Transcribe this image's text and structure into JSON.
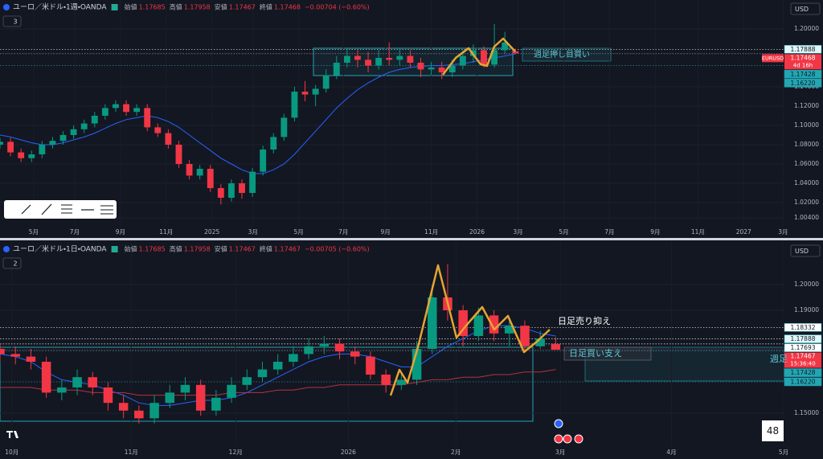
{
  "chart_data": [
    {
      "type": "candlestick",
      "title": "ユーロ／米ドル・1週・OANDA",
      "pane_badge": "3",
      "currency": "USD",
      "stats": [
        {
          "label": "始値",
          "value": 1.17685
        },
        {
          "label": "高値",
          "value": 1.17958
        },
        {
          "label": "安値",
          "value": 1.17467
        },
        {
          "label": "終値",
          "value": 1.17468
        }
      ],
      "change": "−0.00704 (−0.60%)",
      "up_color": "#089981",
      "down_color": "#f23645",
      "x": [
        0,
        2,
        4,
        6,
        8,
        10,
        12,
        14,
        16,
        18,
        20,
        22,
        24,
        26,
        28,
        30,
        32,
        34,
        36,
        38,
        40,
        42,
        44,
        46,
        48,
        50,
        52,
        54,
        56,
        58,
        60,
        62,
        64,
        66,
        68,
        70,
        72,
        74,
        76,
        78,
        80,
        82,
        84,
        86,
        88,
        90,
        92,
        94,
        96,
        98
      ],
      "open": [
        1.08,
        1.083,
        1.072,
        1.066,
        1.07,
        1.08,
        1.084,
        1.09,
        1.096,
        1.102,
        1.11,
        1.118,
        1.122,
        1.114,
        1.118,
        1.098,
        1.092,
        1.08,
        1.06,
        1.048,
        1.055,
        1.035,
        1.025,
        1.04,
        1.03,
        1.052,
        1.075,
        1.088,
        1.108,
        1.135,
        1.132,
        1.138,
        1.152,
        1.165,
        1.172,
        1.168,
        1.162,
        1.17,
        1.168,
        1.172,
        1.165,
        1.158,
        1.16,
        1.155,
        1.162,
        1.172,
        1.178,
        1.163,
        1.178,
        1.17685
      ],
      "high": [
        1.087,
        1.087,
        1.076,
        1.074,
        1.084,
        1.088,
        1.094,
        1.1,
        1.106,
        1.114,
        1.122,
        1.126,
        1.126,
        1.122,
        1.122,
        1.102,
        1.096,
        1.084,
        1.064,
        1.059,
        1.059,
        1.039,
        1.044,
        1.044,
        1.056,
        1.079,
        1.092,
        1.112,
        1.14,
        1.146,
        1.142,
        1.158,
        1.172,
        1.18,
        1.178,
        1.176,
        1.178,
        1.186,
        1.18,
        1.178,
        1.17,
        1.166,
        1.166,
        1.168,
        1.178,
        1.184,
        1.182,
        1.205,
        1.197,
        1.17958
      ],
      "low": [
        1.076,
        1.068,
        1.062,
        1.062,
        1.066,
        1.076,
        1.08,
        1.086,
        1.092,
        1.098,
        1.106,
        1.114,
        1.11,
        1.11,
        1.094,
        1.088,
        1.076,
        1.056,
        1.044,
        1.044,
        1.031,
        1.018,
        1.021,
        1.024,
        1.026,
        1.048,
        1.071,
        1.084,
        1.104,
        1.125,
        1.12,
        1.134,
        1.148,
        1.16,
        1.16,
        1.155,
        1.158,
        1.162,
        1.162,
        1.16,
        1.15,
        1.152,
        1.148,
        1.15,
        1.158,
        1.165,
        1.16,
        1.16,
        1.174,
        1.17467
      ],
      "close": [
        1.083,
        1.072,
        1.066,
        1.07,
        1.08,
        1.084,
        1.09,
        1.096,
        1.102,
        1.11,
        1.118,
        1.122,
        1.114,
        1.118,
        1.098,
        1.092,
        1.08,
        1.06,
        1.048,
        1.055,
        1.035,
        1.025,
        1.04,
        1.03,
        1.052,
        1.075,
        1.088,
        1.108,
        1.135,
        1.132,
        1.138,
        1.152,
        1.165,
        1.172,
        1.168,
        1.162,
        1.17,
        1.168,
        1.172,
        1.165,
        1.158,
        1.16,
        1.155,
        1.162,
        1.172,
        1.178,
        1.163,
        1.178,
        1.186,
        1.17468
      ],
      "series": [
        {
          "color": "#2962ff",
          "values": [
            1.09,
            1.088,
            1.085,
            1.082,
            1.08,
            1.08,
            1.082,
            1.085,
            1.088,
            1.092,
            1.097,
            1.102,
            1.106,
            1.108,
            1.11,
            1.108,
            1.104,
            1.098,
            1.09,
            1.082,
            1.074,
            1.066,
            1.06,
            1.054,
            1.05,
            1.05,
            1.054,
            1.06,
            1.07,
            1.082,
            1.094,
            1.106,
            1.118,
            1.128,
            1.137,
            1.144,
            1.15,
            1.155,
            1.158,
            1.16,
            1.161,
            1.162,
            1.162,
            1.163,
            1.164,
            1.166,
            1.168,
            1.17,
            1.172,
            1.174
          ]
        }
      ],
      "xlim": [
        0,
        149
      ],
      "xticks": [
        {
          "value": 6.4,
          "label": "5月"
        },
        {
          "value": 14.2,
          "label": "7月"
        },
        {
          "value": 22.9,
          "label": "9月"
        },
        {
          "value": 31.6,
          "label": "11月"
        },
        {
          "value": 40.3,
          "label": "2025"
        },
        {
          "value": 48.1,
          "label": "3月"
        },
        {
          "value": 56.8,
          "label": "5月"
        },
        {
          "value": 65.3,
          "label": "7月"
        },
        {
          "value": 73.3,
          "label": "9月"
        },
        {
          "value": 82,
          "label": "11月"
        },
        {
          "value": 90.7,
          "label": "2026"
        },
        {
          "value": 98.5,
          "label": "3月"
        },
        {
          "value": 107.2,
          "label": "5月"
        },
        {
          "value": 115.9,
          "label": "7月"
        },
        {
          "value": 124.6,
          "label": "9月"
        },
        {
          "value": 132.7,
          "label": "11月"
        },
        {
          "value": 141.4,
          "label": "2027"
        },
        {
          "value": 148.9,
          "label": "3月"
        }
      ],
      "ylim": [
        0.99583,
        1.23
      ],
      "yticks": [
        {
          "value": 1.2,
          "label": "1.20000"
        },
        {
          "value": 1.14,
          "label": "1.14000"
        },
        {
          "value": 1.12,
          "label": "1.12000"
        },
        {
          "value": 1.1,
          "label": "1.10000"
        },
        {
          "value": 1.08,
          "label": "1.08000"
        },
        {
          "value": 1.06,
          "label": "1.06000"
        },
        {
          "value": 1.04,
          "label": "1.04000"
        },
        {
          "value": 1.02,
          "label": "1.02000"
        },
        {
          "value": 1.004,
          "label": "1.00400"
        }
      ],
      "levels": [
        1.17888,
        1.17428,
        {
          "value": 1.1622,
          "label": "1.16220"
        }
      ],
      "level_colors": [
        "#e0f7fa",
        "#22a6b3",
        "#22a6b3"
      ],
      "last_price": 1.17468,
      "countdown": "4d 16h",
      "symbol_tag": "EURUSD",
      "annotations": [
        "週足押し目買い"
      ]
    },
    {
      "type": "candlestick",
      "title": "ユーロ／米ドル・1日・OANDA",
      "pane_badge": "2",
      "currency": "USD",
      "stats": [
        {
          "label": "始値",
          "value": 1.17685
        },
        {
          "label": "高値",
          "value": 1.17958
        },
        {
          "label": "安値",
          "value": 1.17467
        },
        {
          "label": "終値",
          "value": 1.17467
        }
      ],
      "change": "−0.00705 (−0.60%)",
      "up_color": "#089981",
      "down_color": "#f23645",
      "x": [
        0,
        3,
        6,
        9,
        12,
        15,
        18,
        21,
        24,
        27,
        30,
        33,
        36,
        39,
        42,
        45,
        48,
        51,
        54,
        57,
        60,
        63,
        66,
        69,
        72,
        75,
        78,
        81,
        84,
        87,
        90,
        93,
        96,
        99,
        102,
        105,
        108
      ],
      "open": [
        1.175,
        1.173,
        1.172,
        1.17,
        1.158,
        1.16,
        1.164,
        1.16,
        1.154,
        1.151,
        1.148,
        1.154,
        1.158,
        1.161,
        1.151,
        1.156,
        1.161,
        1.164,
        1.167,
        1.17,
        1.173,
        1.176,
        1.177,
        1.174,
        1.172,
        1.165,
        1.161,
        1.163,
        1.175,
        1.195,
        1.19,
        1.18,
        1.188,
        1.181,
        1.184,
        1.176,
        1.17685
      ],
      "high": [
        1.177,
        1.176,
        1.175,
        1.172,
        1.163,
        1.167,
        1.166,
        1.162,
        1.157,
        1.153,
        1.157,
        1.161,
        1.164,
        1.163,
        1.159,
        1.164,
        1.167,
        1.17,
        1.173,
        1.176,
        1.179,
        1.18,
        1.179,
        1.176,
        1.174,
        1.167,
        1.166,
        1.178,
        1.2,
        1.208,
        1.192,
        1.191,
        1.19,
        1.187,
        1.186,
        1.182,
        1.17958
      ],
      "low": [
        1.17,
        1.169,
        1.167,
        1.156,
        1.155,
        1.157,
        1.157,
        1.151,
        1.148,
        1.146,
        1.146,
        1.152,
        1.155,
        1.149,
        1.149,
        1.154,
        1.159,
        1.162,
        1.165,
        1.168,
        1.171,
        1.173,
        1.171,
        1.169,
        1.163,
        1.158,
        1.159,
        1.161,
        1.173,
        1.186,
        1.176,
        1.178,
        1.178,
        1.176,
        1.174,
        1.175,
        1.17467
      ],
      "close": [
        1.173,
        1.172,
        1.17,
        1.158,
        1.16,
        1.164,
        1.16,
        1.154,
        1.151,
        1.148,
        1.154,
        1.158,
        1.161,
        1.151,
        1.156,
        1.161,
        1.164,
        1.167,
        1.17,
        1.173,
        1.176,
        1.177,
        1.174,
        1.172,
        1.165,
        1.161,
        1.163,
        1.175,
        1.195,
        1.19,
        1.18,
        1.188,
        1.181,
        1.184,
        1.176,
        1.179,
        1.17467
      ],
      "series": [
        {
          "color": "#2962ff",
          "values": [
            1.173,
            1.172,
            1.17,
            1.166,
            1.163,
            1.162,
            1.161,
            1.159,
            1.157,
            1.154,
            1.153,
            1.153,
            1.154,
            1.155,
            1.155,
            1.156,
            1.158,
            1.161,
            1.164,
            1.167,
            1.17,
            1.172,
            1.173,
            1.173,
            1.172,
            1.17,
            1.168,
            1.168,
            1.172,
            1.176,
            1.179,
            1.182,
            1.184,
            1.184,
            1.183,
            1.181,
            1.18
          ]
        },
        {
          "color": "#b2343f",
          "values": [
            1.16,
            1.16,
            1.16,
            1.159,
            1.159,
            1.159,
            1.158,
            1.158,
            1.158,
            1.157,
            1.157,
            1.157,
            1.157,
            1.157,
            1.157,
            1.158,
            1.158,
            1.158,
            1.159,
            1.159,
            1.16,
            1.16,
            1.161,
            1.161,
            1.161,
            1.161,
            1.161,
            1.162,
            1.163,
            1.163,
            1.164,
            1.164,
            1.165,
            1.165,
            1.166,
            1.166,
            1.167
          ]
        }
      ],
      "xlim": [
        0,
        152.3
      ],
      "xticks": [
        {
          "value": 2.3,
          "label": "10月"
        },
        {
          "value": 25.5,
          "label": "11月"
        },
        {
          "value": 45.8,
          "label": "12月"
        },
        {
          "value": 67.7,
          "label": "2026"
        },
        {
          "value": 88.6,
          "label": "2月"
        },
        {
          "value": 108.9,
          "label": "3月"
        },
        {
          "value": 130.5,
          "label": "4月"
        },
        {
          "value": 152.3,
          "label": "5月"
        }
      ],
      "ylim": [
        1.13719,
        1.21656
      ],
      "yticks": [
        {
          "value": 1.2,
          "label": "1.20000"
        },
        {
          "value": 1.19,
          "label": "1.19000"
        },
        {
          "value": 1.15,
          "label": "1.15000"
        }
      ],
      "levels": [
        1.18332,
        1.17888,
        1.17693,
        1.17428,
        {
          "value": 1.1622,
          "label": "1.16220"
        }
      ],
      "level_colors": [
        "#ffffff",
        "#e0f7fa",
        "#ffffff",
        "#22a6b3",
        "#22a6b3"
      ],
      "last_price": 1.17467,
      "countdown": "15:36:40",
      "annotations": [
        "日足売り抑え",
        "日足買い支え",
        "週足"
      ],
      "corner_number": 48
    }
  ]
}
